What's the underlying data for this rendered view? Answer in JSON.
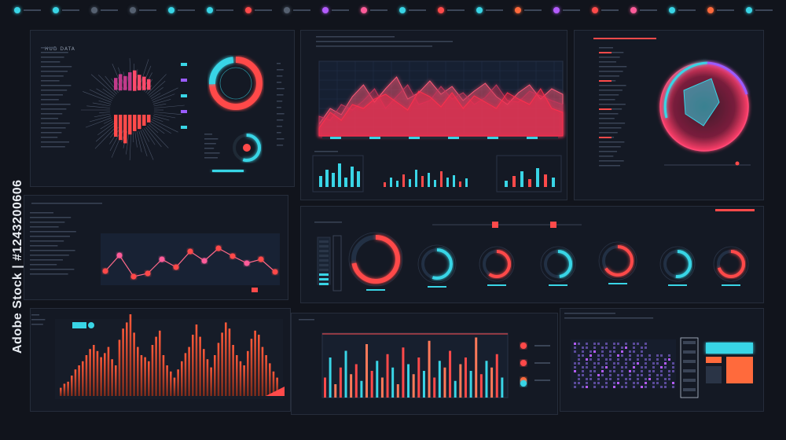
{
  "watermark": {
    "text": "Adobe Stock | #1243200606"
  },
  "colors": {
    "bg": "#11141c",
    "panel": "#141924",
    "cyan": "#39d5e6",
    "red": "#ff4a4a",
    "orange": "#ff6a3c",
    "pink": "#ff5c7a",
    "purple": "#9a5cff"
  },
  "top_icons": [
    {
      "icon": "cyan-signal-icon",
      "color": "#39d5e6"
    },
    {
      "icon": "wave-icon",
      "color": "#39d5e6"
    },
    {
      "icon": "dot-icon",
      "color": "#556070"
    },
    {
      "icon": "dot-icon",
      "color": "#556070"
    },
    {
      "icon": "cyan-badge-icon",
      "color": "#39d5e6"
    },
    {
      "icon": "cyan-badge-icon",
      "color": "#39d5e6"
    },
    {
      "icon": "red-badge-icon",
      "color": "#ff4a4a"
    },
    {
      "icon": "dot-icon",
      "color": "#556070"
    },
    {
      "icon": "purple-badge-icon",
      "color": "#b45cff"
    },
    {
      "icon": "pink-badge-icon",
      "color": "#ff5c9a"
    },
    {
      "icon": "wave-icon",
      "color": "#39d5e6"
    },
    {
      "icon": "red-badge-icon",
      "color": "#ff4a4a"
    },
    {
      "icon": "cyan-badge-icon",
      "color": "#39d5e6"
    },
    {
      "icon": "orange-badge-icon",
      "color": "#ff6a3c"
    },
    {
      "icon": "purple-badge-icon",
      "color": "#b45cff"
    },
    {
      "icon": "red-badge-icon",
      "color": "#ff4a4a"
    },
    {
      "icon": "pink-badge-icon",
      "color": "#ff5c9a"
    },
    {
      "icon": "cyan-badge-icon",
      "color": "#39d5e6"
    },
    {
      "icon": "orange-badge-icon",
      "color": "#ff6a3c"
    },
    {
      "icon": "cyan-badge-icon",
      "color": "#39d5e6"
    }
  ],
  "panels": {
    "radial": {
      "title": "HUD DATA"
    },
    "area": {
      "title": ""
    },
    "orb": {
      "title": ""
    },
    "dots": {
      "title": ""
    },
    "gauges": {
      "title": ""
    },
    "orange_bars": {
      "title": ""
    },
    "mixed_bars": {
      "title": ""
    },
    "map": {
      "title": ""
    }
  },
  "charts": {
    "area_series": [
      [
        10,
        30,
        22,
        45,
        60,
        38,
        55,
        70,
        42,
        50,
        65,
        48,
        58,
        40,
        52,
        62,
        45,
        35,
        50,
        60,
        42,
        55,
        48
      ],
      [
        20,
        15,
        35,
        28,
        40,
        55,
        30,
        45,
        60,
        35,
        40,
        58,
        42,
        50,
        35,
        44,
        60,
        40,
        38,
        52,
        46,
        40,
        35
      ],
      [
        5,
        25,
        15,
        35,
        30,
        42,
        48,
        38,
        28,
        52,
        45,
        32,
        50,
        30,
        46,
        38,
        30,
        50,
        42,
        35,
        55,
        30,
        25
      ]
    ],
    "mini_bars_1": [
      14,
      22,
      18,
      30,
      12,
      26,
      20
    ],
    "mini_bars_2": [
      6,
      12,
      8,
      16,
      10,
      22,
      14,
      18,
      9,
      20,
      12,
      15,
      7,
      11
    ],
    "mini_bars_3": [
      8,
      14,
      20,
      10,
      24,
      16,
      12
    ],
    "dot_line": [
      55,
      35,
      62,
      58,
      40,
      50,
      30,
      42,
      26,
      36,
      45,
      40,
      56
    ],
    "orange_bars": [
      8,
      12,
      14,
      20,
      26,
      30,
      34,
      40,
      46,
      50,
      44,
      38,
      42,
      48,
      36,
      30,
      55,
      66,
      72,
      80,
      62,
      48,
      40,
      38,
      34,
      50,
      58,
      64,
      40,
      30,
      24,
      18,
      26,
      34,
      42,
      48,
      60,
      70,
      58,
      46,
      36,
      28,
      40,
      52,
      62,
      72,
      66,
      50,
      40,
      34,
      30,
      44,
      56,
      64,
      60,
      48,
      40,
      32,
      24,
      18
    ],
    "mixed_bars": [
      30,
      60,
      20,
      45,
      70,
      35,
      50,
      25,
      80,
      40,
      55,
      30,
      65,
      45,
      20,
      75,
      50,
      35,
      60,
      40,
      85,
      30,
      55,
      45,
      70,
      25,
      50,
      60,
      40,
      90,
      35,
      55,
      45,
      65,
      30
    ],
    "gauges": [
      0.72,
      0.55,
      0.6,
      0.48,
      0.66,
      0.52,
      0.7
    ]
  }
}
